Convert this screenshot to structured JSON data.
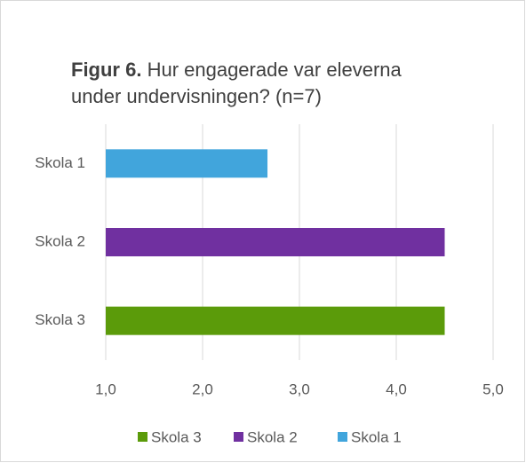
{
  "chart_data": {
    "type": "bar",
    "orientation": "horizontal",
    "title": {
      "label": "Figur 6.",
      "text": "Hur engagerade var eleverna under undervisningen? (n=7)"
    },
    "categories": [
      "Skola 1",
      "Skola 2",
      "Skola 3"
    ],
    "values": [
      2.67,
      4.5,
      4.5
    ],
    "colors": [
      "#41a5dc",
      "#7030a0",
      "#5b9b0a"
    ],
    "xlim": [
      1,
      5
    ],
    "xticks": [
      {
        "value": 1,
        "label": "1,0"
      },
      {
        "value": 2,
        "label": "2,0"
      },
      {
        "value": 3,
        "label": "3,0"
      },
      {
        "value": 4,
        "label": "4,0"
      },
      {
        "value": 5,
        "label": "5,0"
      }
    ],
    "grid": true,
    "legend": "bottom"
  }
}
